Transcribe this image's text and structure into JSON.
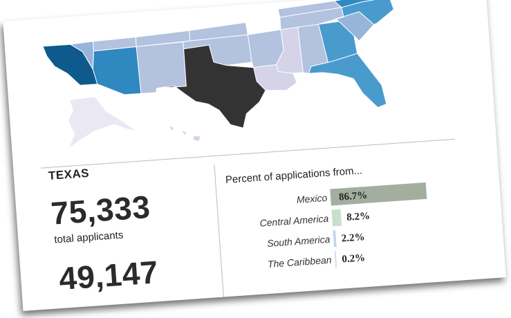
{
  "state": {
    "name": "TEXAS"
  },
  "stats": [
    {
      "value": "75,333",
      "label": "total applicants"
    },
    {
      "value": "49,147",
      "label": ""
    }
  ],
  "map": {
    "highlight_color": "#333333",
    "palette": [
      "#eae8f3",
      "#d5d3e8",
      "#b2c2df",
      "#96b5d9",
      "#4a9bcd",
      "#2f88c0",
      "#0e5a8d"
    ],
    "regions": [
      {
        "name": "california",
        "level": 6
      },
      {
        "name": "arizona",
        "level": 5
      },
      {
        "name": "nevada",
        "level": 3
      },
      {
        "name": "new-mexico",
        "level": 2
      },
      {
        "name": "utah",
        "level": 2
      },
      {
        "name": "colorado",
        "level": 2
      },
      {
        "name": "kansas",
        "level": 2
      },
      {
        "name": "oklahoma",
        "level": 2
      },
      {
        "name": "texas",
        "level": "highlight"
      },
      {
        "name": "arkansas",
        "level": 2
      },
      {
        "name": "louisiana",
        "level": 1
      },
      {
        "name": "mississippi",
        "level": 1
      },
      {
        "name": "alabama",
        "level": 2
      },
      {
        "name": "georgia",
        "level": 4
      },
      {
        "name": "florida",
        "level": 4
      },
      {
        "name": "south-carolina",
        "level": 3
      },
      {
        "name": "north-carolina",
        "level": 4
      },
      {
        "name": "tennessee",
        "level": 2
      },
      {
        "name": "kentucky",
        "level": 2
      },
      {
        "name": "virginia",
        "level": 5
      },
      {
        "name": "alaska",
        "level": 0
      },
      {
        "name": "hawaii",
        "level": 1
      }
    ]
  },
  "chart_data": {
    "type": "bar",
    "title": "Percent of applications from...",
    "categories": [
      "Mexico",
      "Central America",
      "South America",
      "The Caribbean"
    ],
    "values": [
      86.7,
      8.2,
      2.2,
      0.2
    ],
    "value_labels": [
      "86.7%",
      "8.2%",
      "2.2%",
      "0.2%"
    ],
    "colors": [
      "#a3ae9e",
      "#c9dfcb",
      "#bcd6e8",
      "#d7dcea"
    ],
    "xlim": [
      0,
      100
    ],
    "orientation": "horizontal",
    "grid": false
  }
}
